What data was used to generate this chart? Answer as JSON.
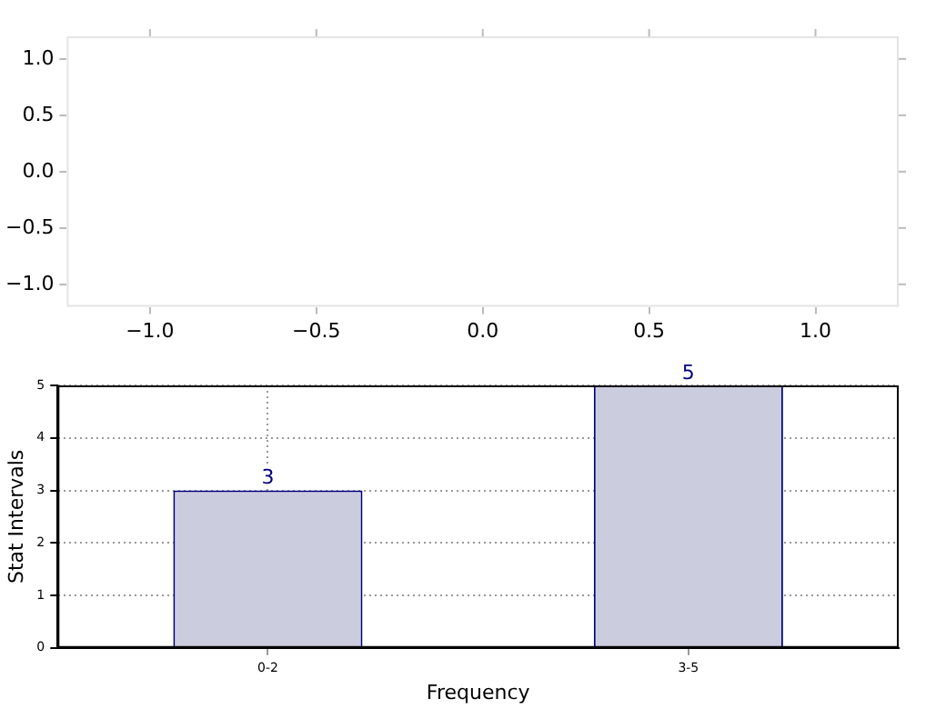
{
  "chart_data": [
    {
      "type": "scatter",
      "xlim": [
        -1.25,
        1.25
      ],
      "ylim": [
        -1.2,
        1.2
      ],
      "xticks": [
        {
          "value": -1,
          "label": "−1.0"
        },
        {
          "value": -0.5,
          "label": "−0.5"
        },
        {
          "value": 0,
          "label": "0.0"
        },
        {
          "value": 0.5,
          "label": "0.5"
        },
        {
          "value": 1,
          "label": "1.0"
        }
      ],
      "yticks": [
        {
          "value": -1,
          "label": "−1.0"
        },
        {
          "value": -0.5,
          "label": "−0.5"
        },
        {
          "value": 0,
          "label": "0.0"
        },
        {
          "value": 0.5,
          "label": "0.5"
        },
        {
          "value": 1,
          "label": "1.0"
        }
      ],
      "grid": false
    },
    {
      "type": "bar",
      "categories": [
        "0-2",
        "3-5"
      ],
      "values": [
        3,
        5
      ],
      "color": "#ccccdf",
      "xlabel": "Frequency",
      "ylabel": "Stat Intervals",
      "ylim": [
        0,
        5
      ],
      "yticks": [
        0,
        1,
        2,
        3,
        4,
        5
      ],
      "grid": true,
      "data_labels": true
    }
  ]
}
